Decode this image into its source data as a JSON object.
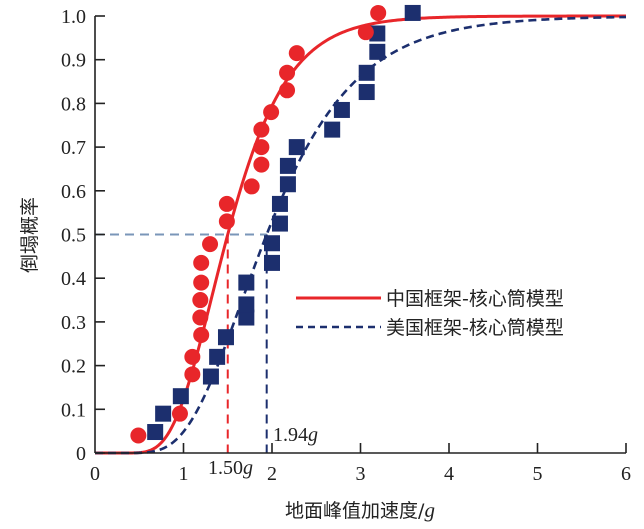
{
  "chart_data": {
    "type": "scatter",
    "title": "",
    "xlabel": "地面峰值加速度/",
    "xlabel_unit": "g",
    "ylabel": "倒塌概率",
    "xlim": [
      0,
      6
    ],
    "ylim": [
      0,
      1.0
    ],
    "x_ticks": [
      "0",
      "1",
      "2",
      "3",
      "4",
      "5",
      "6"
    ],
    "y_ticks": [
      "0",
      "0.1",
      "0.2",
      "0.3",
      "0.4",
      "0.5",
      "0.6",
      "0.7",
      "0.8",
      "0.9",
      "1.0"
    ],
    "grid": false,
    "legend_position": "right-middle",
    "colors": {
      "china": "#e8262a",
      "us": "#1c2f6e",
      "ref_line": "#7a96b8"
    },
    "series": [
      {
        "name": "中国框架-核心筒模型",
        "kind": "lognormal-fragility",
        "line_style": "solid",
        "median": 1.5,
        "beta": 0.35,
        "marker": "circle",
        "points": [
          [
            0.49,
            0.04
          ],
          [
            0.96,
            0.09
          ],
          [
            1.1,
            0.18
          ],
          [
            1.1,
            0.22
          ],
          [
            1.2,
            0.27
          ],
          [
            1.19,
            0.31
          ],
          [
            1.19,
            0.35
          ],
          [
            1.2,
            0.39
          ],
          [
            1.2,
            0.435
          ],
          [
            1.3,
            0.478
          ],
          [
            1.49,
            0.53
          ],
          [
            1.49,
            0.57
          ],
          [
            1.77,
            0.61
          ],
          [
            1.88,
            0.66
          ],
          [
            1.88,
            0.7
          ],
          [
            1.88,
            0.74
          ],
          [
            1.99,
            0.78
          ],
          [
            2.17,
            0.83
          ],
          [
            2.17,
            0.87
          ],
          [
            2.28,
            0.915
          ],
          [
            3.06,
            0.963
          ],
          [
            3.2,
            1.007
          ]
        ]
      },
      {
        "name": "美国框架-核心筒模型",
        "kind": "lognormal-fragility",
        "line_style": "dashed",
        "median": 1.94,
        "beta": 0.4,
        "marker": "square",
        "points": [
          [
            0.68,
            0.048
          ],
          [
            0.77,
            0.09
          ],
          [
            0.97,
            0.13
          ],
          [
            1.31,
            0.175
          ],
          [
            1.38,
            0.22
          ],
          [
            1.48,
            0.265
          ],
          [
            1.71,
            0.31
          ],
          [
            1.71,
            0.34
          ],
          [
            1.71,
            0.39
          ],
          [
            2.0,
            0.435
          ],
          [
            2.0,
            0.48
          ],
          [
            2.09,
            0.525
          ],
          [
            2.09,
            0.57
          ],
          [
            2.18,
            0.615
          ],
          [
            2.18,
            0.657
          ],
          [
            2.28,
            0.7
          ],
          [
            2.68,
            0.74
          ],
          [
            2.79,
            0.785
          ],
          [
            3.07,
            0.826
          ],
          [
            3.07,
            0.87
          ],
          [
            3.19,
            0.918
          ],
          [
            3.19,
            0.96
          ],
          [
            3.59,
            1.007
          ]
        ]
      }
    ],
    "annotations": [
      {
        "text": "1.50",
        "unit": "g",
        "x": 1.5,
        "y": 0.5,
        "series": "china"
      },
      {
        "text": "1.94",
        "unit": "g",
        "x": 1.94,
        "y": 0.5,
        "series": "us"
      }
    ]
  }
}
